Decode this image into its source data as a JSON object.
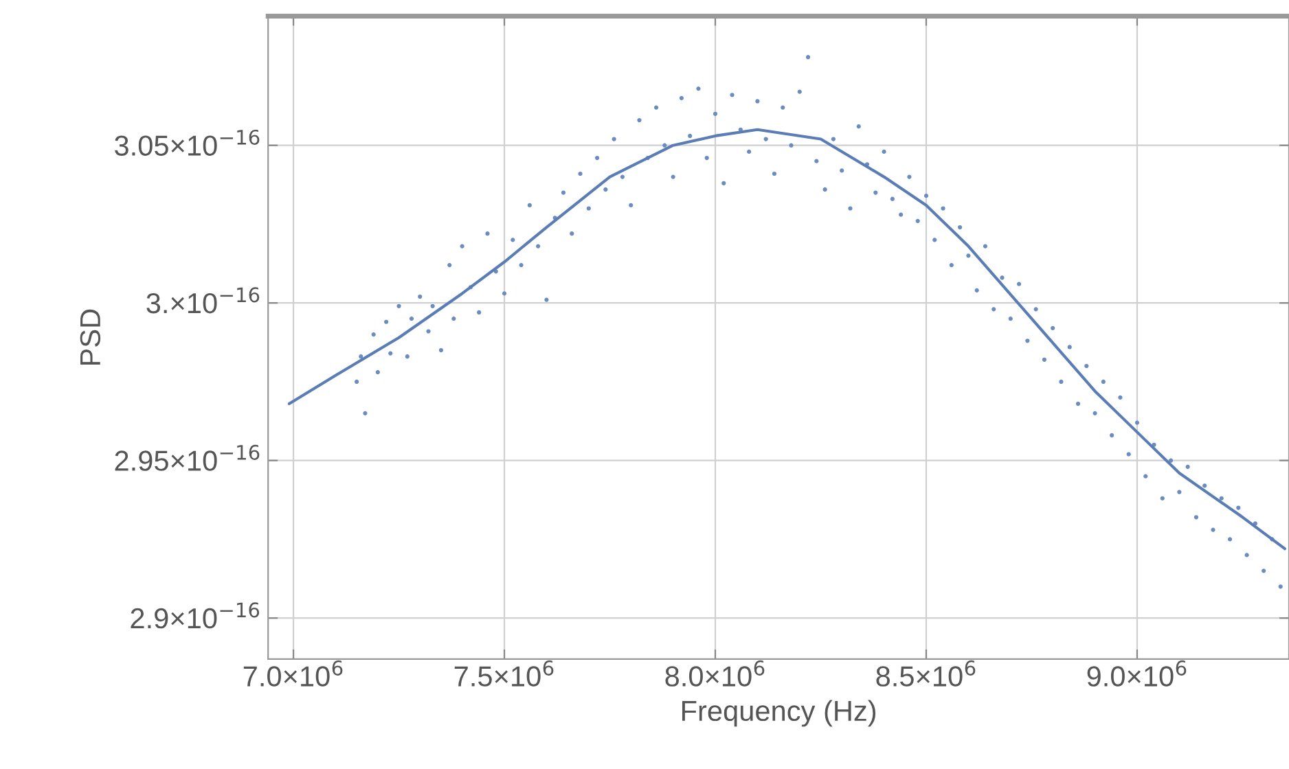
{
  "chart_data": {
    "type": "scatter",
    "xlabel": "Frequency (Hz)",
    "ylabel": "PSD",
    "xlim": [
      6940000.0,
      9360000.0
    ],
    "ylim": [
      2.887e-16,
      3.091e-16
    ],
    "xticks": [
      {
        "value": 7000000.0,
        "label": "7.0×10$^{6}$"
      },
      {
        "value": 7500000.0,
        "label": "7.5×10$^{6}$"
      },
      {
        "value": 8000000.0,
        "label": "8.0×10$^{6}$"
      },
      {
        "value": 8500000.0,
        "label": "8.5×10$^{6}$"
      },
      {
        "value": 9000000.0,
        "label": "9.0×10$^{6}$"
      }
    ],
    "yticks": [
      {
        "value": 2.9e-16,
        "label": "2.9×10$^{−16}$"
      },
      {
        "value": 2.95e-16,
        "label": "2.95×10$^{−16}$"
      },
      {
        "value": 3e-16,
        "label": "3.×10$^{−16}$"
      },
      {
        "value": 3.05e-16,
        "label": "3.05×10$^{−16}$"
      }
    ],
    "grid": true,
    "series": [
      {
        "color": "#6b8cc0",
        "marker": "circle",
        "x": [
          7150000.0,
          7160000.0,
          7170000.0,
          7190000.0,
          7200000.0,
          7220000.0,
          7230000.0,
          7250000.0,
          7270000.0,
          7280000.0,
          7300000.0,
          7320000.0,
          7330000.0,
          7350000.0,
          7370000.0,
          7380000.0,
          7400000.0,
          7420000.0,
          7440000.0,
          7460000.0,
          7480000.0,
          7500000.0,
          7520000.0,
          7540000.0,
          7560000.0,
          7580000.0,
          7600000.0,
          7620000.0,
          7640000.0,
          7660000.0,
          7680000.0,
          7700000.0,
          7720000.0,
          7740000.0,
          7760000.0,
          7780000.0,
          7800000.0,
          7820000.0,
          7840000.0,
          7860000.0,
          7880000.0,
          7900000.0,
          7920000.0,
          7940000.0,
          7960000.0,
          7980000.0,
          8000000.0,
          8020000.0,
          8040000.0,
          8060000.0,
          8080000.0,
          8100000.0,
          8120000.0,
          8140000.0,
          8160000.0,
          8180000.0,
          8200000.0,
          8220000.0,
          8240000.0,
          8260000.0,
          8280000.0,
          8300000.0,
          8320000.0,
          8340000.0,
          8360000.0,
          8380000.0,
          8400000.0,
          8420000.0,
          8440000.0,
          8460000.0,
          8480000.0,
          8500000.0,
          8520000.0,
          8540000.0,
          8560000.0,
          8580000.0,
          8600000.0,
          8620000.0,
          8640000.0,
          8660000.0,
          8680000.0,
          8700000.0,
          8720000.0,
          8740000.0,
          8760000.0,
          8780000.0,
          8800000.0,
          8820000.0,
          8840000.0,
          8860000.0,
          8880000.0,
          8900000.0,
          8920000.0,
          8940000.0,
          8960000.0,
          8980000.0,
          9000000.0,
          9020000.0,
          9040000.0,
          9060000.0,
          9080000.0,
          9100000.0,
          9120000.0,
          9140000.0,
          9160000.0,
          9180000.0,
          9200000.0,
          9220000.0,
          9240000.0,
          9260000.0,
          9280000.0,
          9300000.0,
          9320000.0,
          9340000.0
        ],
        "values": [
          2.975e-16,
          2.983e-16,
          2.965e-16,
          2.99e-16,
          2.978e-16,
          2.994e-16,
          2.984e-16,
          2.999e-16,
          2.983e-16,
          2.995e-16,
          3.002e-16,
          2.991e-16,
          2.999e-16,
          2.985e-16,
          3.012e-16,
          2.995e-16,
          3.018e-16,
          3.005e-16,
          2.997e-16,
          3.022e-16,
          3.01e-16,
          3.003e-16,
          3.02e-16,
          3.012e-16,
          3.031e-16,
          3.018e-16,
          3.001e-16,
          3.027e-16,
          3.035e-16,
          3.022e-16,
          3.041e-16,
          3.03e-16,
          3.046e-16,
          3.036e-16,
          3.052e-16,
          3.04e-16,
          3.031e-16,
          3.058e-16,
          3.046e-16,
          3.062e-16,
          3.05e-16,
          3.04e-16,
          3.065e-16,
          3.053e-16,
          3.068e-16,
          3.046e-16,
          3.06e-16,
          3.038e-16,
          3.066e-16,
          3.055e-16,
          3.048e-16,
          3.064e-16,
          3.052e-16,
          3.041e-16,
          3.062e-16,
          3.05e-16,
          3.067e-16,
          3.078e-16,
          3.045e-16,
          3.036e-16,
          3.052e-16,
          3.042e-16,
          3.03e-16,
          3.056e-16,
          3.044e-16,
          3.035e-16,
          3.048e-16,
          3.033e-16,
          3.028e-16,
          3.04e-16,
          3.026e-16,
          3.034e-16,
          3.02e-16,
          3.03e-16,
          3.012e-16,
          3.024e-16,
          3.015e-16,
          3.004e-16,
          3.018e-16,
          2.998e-16,
          3.008e-16,
          2.995e-16,
          3.006e-16,
          2.988e-16,
          2.998e-16,
          2.982e-16,
          2.992e-16,
          2.975e-16,
          2.986e-16,
          2.968e-16,
          2.98e-16,
          2.965e-16,
          2.975e-16,
          2.958e-16,
          2.97e-16,
          2.952e-16,
          2.962e-16,
          2.945e-16,
          2.955e-16,
          2.938e-16,
          2.95e-16,
          2.94e-16,
          2.948e-16,
          2.932e-16,
          2.942e-16,
          2.928e-16,
          2.938e-16,
          2.925e-16,
          2.935e-16,
          2.92e-16,
          2.93e-16,
          2.915e-16,
          2.925e-16,
          2.91e-16
        ]
      },
      {
        "type": "line",
        "color": "#5a7db5",
        "line_style": "solid",
        "x": [
          6990000.0,
          7100000.0,
          7250000.0,
          7400000.0,
          7500000.0,
          7600000.0,
          7750000.0,
          7900000.0,
          8000000.0,
          8100000.0,
          8250000.0,
          8400000.0,
          8500000.0,
          8600000.0,
          8750000.0,
          8900000.0,
          9000000.0,
          9100000.0,
          9250000.0,
          9350000.0
        ],
        "values": [
          2.968e-16,
          2.977e-16,
          2.989e-16,
          3.003e-16,
          3.013e-16,
          3.024e-16,
          3.04e-16,
          3.05e-16,
          3.053e-16,
          3.055e-16,
          3.052e-16,
          3.04e-16,
          3.031e-16,
          3.018e-16,
          2.995e-16,
          2.972e-16,
          2.959e-16,
          2.946e-16,
          2.932e-16,
          2.922e-16
        ]
      }
    ]
  }
}
